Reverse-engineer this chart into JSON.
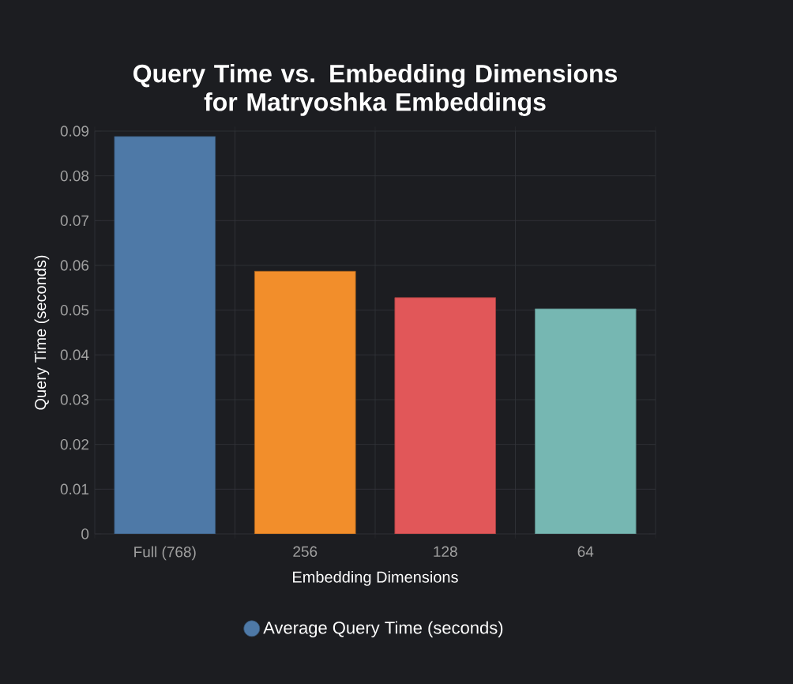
{
  "chart_data": {
    "type": "bar",
    "title": "Query Time vs. Embedding Dimensions for Matryoshka Embeddings",
    "xlabel": "Embedding Dimensions",
    "ylabel": "Query Time (seconds)",
    "categories": [
      "Full (768)",
      "256",
      "128",
      "64"
    ],
    "series": [
      {
        "name": "Average Query Time (seconds)",
        "color": "#4e79a7",
        "colors": [
          "#4e79a7",
          "#f28e2b",
          "#e15759",
          "#76b7b2"
        ],
        "values": [
          0.0888,
          0.0587,
          0.0528,
          0.0503
        ]
      }
    ],
    "ylim": [
      0,
      0.09
    ],
    "yticks": [
      0,
      0.01,
      0.02,
      0.03,
      0.04,
      0.05,
      0.06,
      0.07,
      0.08,
      0.09
    ],
    "grid": true,
    "legend": "bottom"
  }
}
